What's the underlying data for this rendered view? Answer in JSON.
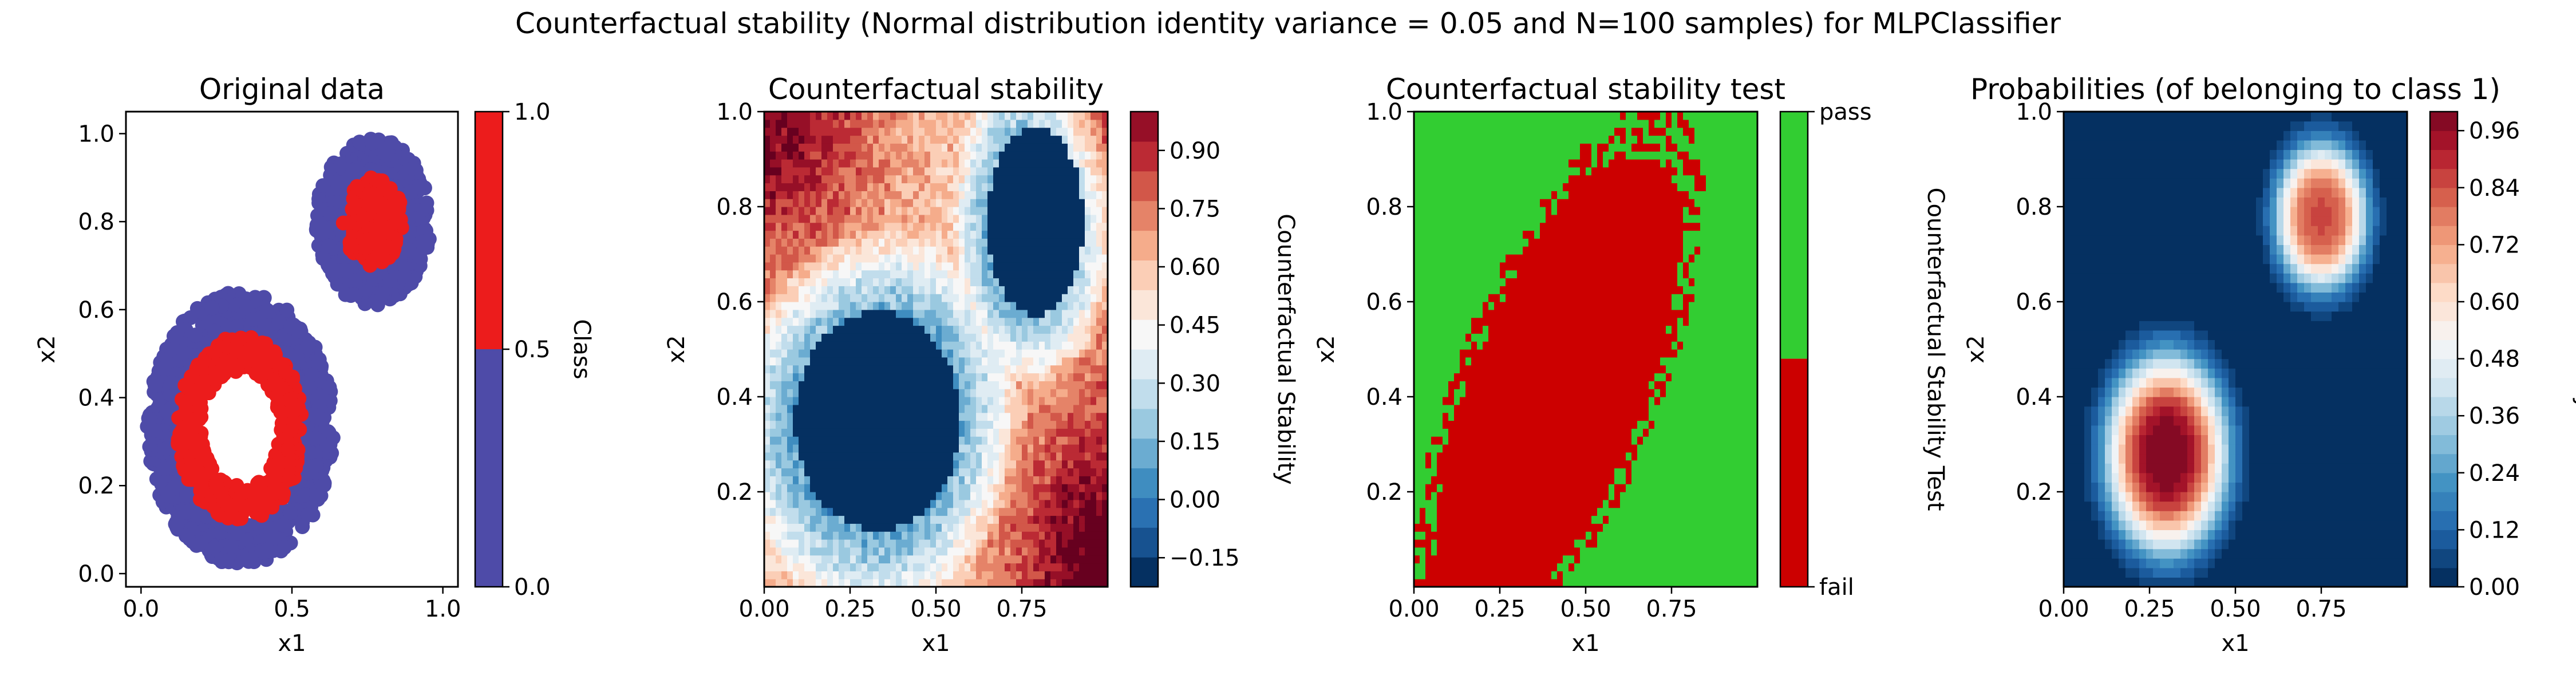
{
  "figure": {
    "suptitle": "Counterfactual stability (Normal distribution identity variance = 0.05 and N=100 samples) for MLPClassifier"
  },
  "colors": {
    "class0": "#4e4ba8",
    "class1": "#ec1c1c",
    "pass": "#32cd32",
    "fail": "#cc0000"
  },
  "chart_data": [
    {
      "type": "scatter",
      "title": "Original data",
      "xlabel": "x1",
      "ylabel": "x2",
      "xlim": [
        -0.05,
        1.05
      ],
      "ylim": [
        -0.03,
        1.05
      ],
      "xticks": [
        "0.0",
        "0.5",
        "1.0"
      ],
      "xtick_values": [
        0.0,
        0.5,
        1.0
      ],
      "yticks": [
        "0.0",
        "0.2",
        "0.4",
        "0.6",
        "0.8",
        "1.0"
      ],
      "ytick_values": [
        0.0,
        0.2,
        0.4,
        0.6,
        0.8,
        1.0
      ],
      "series": [
        {
          "class": 0,
          "color": "#4e4ba8",
          "rings": [
            {
              "cx": 0.33,
              "cy": 0.33,
              "r_in": 0.22,
              "r_out": 0.31,
              "n": 900
            },
            {
              "cx": 0.77,
              "cy": 0.8,
              "r_in": 0.1,
              "r_out": 0.19,
              "n": 500
            }
          ]
        },
        {
          "class": 1,
          "color": "#ec1c1c",
          "rings": [
            {
              "cx": 0.33,
              "cy": 0.33,
              "r_in": 0.13,
              "r_out": 0.21,
              "n": 450
            },
            {
              "cx": 0.77,
              "cy": 0.8,
              "r_in": 0.02,
              "r_out": 0.1,
              "n": 220
            }
          ]
        }
      ],
      "colorbar": {
        "label": "Class",
        "ticks": [
          "0.0",
          "0.5",
          "1.0"
        ],
        "segments": [
          {
            "from": 0.0,
            "to": 0.5,
            "color": "#4e4ba8"
          },
          {
            "from": 0.5,
            "to": 1.0,
            "color": "#ec1c1c"
          }
        ]
      }
    },
    {
      "type": "heatmap",
      "title": "Counterfactual stability",
      "xlabel": "x1",
      "ylabel": "x2",
      "xlim": [
        0.0,
        1.0
      ],
      "ylim": [
        0.0,
        1.0
      ],
      "xticks": [
        "0.00",
        "0.25",
        "0.50",
        "0.75"
      ],
      "xtick_values": [
        0.0,
        0.25,
        0.5,
        0.75
      ],
      "yticks": [
        "0.2",
        "0.4",
        "0.6",
        "0.8",
        "1.0"
      ],
      "ytick_values": [
        0.2,
        0.4,
        0.6,
        0.8,
        1.0
      ],
      "colormap": "RdBu_r",
      "value_range": [
        -0.225,
        1.0
      ],
      "colorbar": {
        "label": "Counterfactual Stability",
        "ticks": [
          "−0.15",
          "0.00",
          "0.15",
          "0.30",
          "0.45",
          "0.60",
          "0.75",
          "0.90"
        ],
        "tick_values": [
          -0.15,
          0.0,
          0.15,
          0.3,
          0.45,
          0.6,
          0.75,
          0.9
        ]
      }
    },
    {
      "type": "heatmap",
      "title": "Counterfactual stability test",
      "xlabel": "x1",
      "ylabel": "x2",
      "xlim": [
        0.0,
        1.0
      ],
      "ylim": [
        0.0,
        1.0
      ],
      "xticks": [
        "0.00",
        "0.25",
        "0.50",
        "0.75"
      ],
      "xtick_values": [
        0.0,
        0.25,
        0.5,
        0.75
      ],
      "yticks": [
        "0.2",
        "0.4",
        "0.6",
        "0.8",
        "1.0"
      ],
      "ytick_values": [
        0.2,
        0.4,
        0.6,
        0.8,
        1.0
      ],
      "categories": [
        "fail",
        "pass"
      ],
      "colorbar": {
        "label": "Counterfactual Stability Test",
        "ticks": [
          "fail",
          "pass"
        ]
      }
    },
    {
      "type": "heatmap",
      "title": "Probabilities (of belonging to class 1)",
      "xlabel": "x1",
      "ylabel": "x2",
      "xlim": [
        0.0,
        1.0
      ],
      "ylim": [
        0.0,
        1.0
      ],
      "xticks": [
        "0.00",
        "0.25",
        "0.50",
        "0.75"
      ],
      "xtick_values": [
        0.0,
        0.25,
        0.5,
        0.75
      ],
      "yticks": [
        "0.2",
        "0.4",
        "0.6",
        "0.8",
        "1.0"
      ],
      "ytick_values": [
        0.2,
        0.4,
        0.6,
        0.8,
        1.0
      ],
      "colormap": "RdBu_r",
      "value_range": [
        0.0,
        1.0
      ],
      "colorbar": {
        "label": "Probability",
        "ticks": [
          "0.00",
          "0.12",
          "0.24",
          "0.36",
          "0.48",
          "0.60",
          "0.72",
          "0.84",
          "0.96"
        ],
        "tick_values": [
          0.0,
          0.12,
          0.24,
          0.36,
          0.48,
          0.6,
          0.72,
          0.84,
          0.96
        ]
      }
    }
  ]
}
